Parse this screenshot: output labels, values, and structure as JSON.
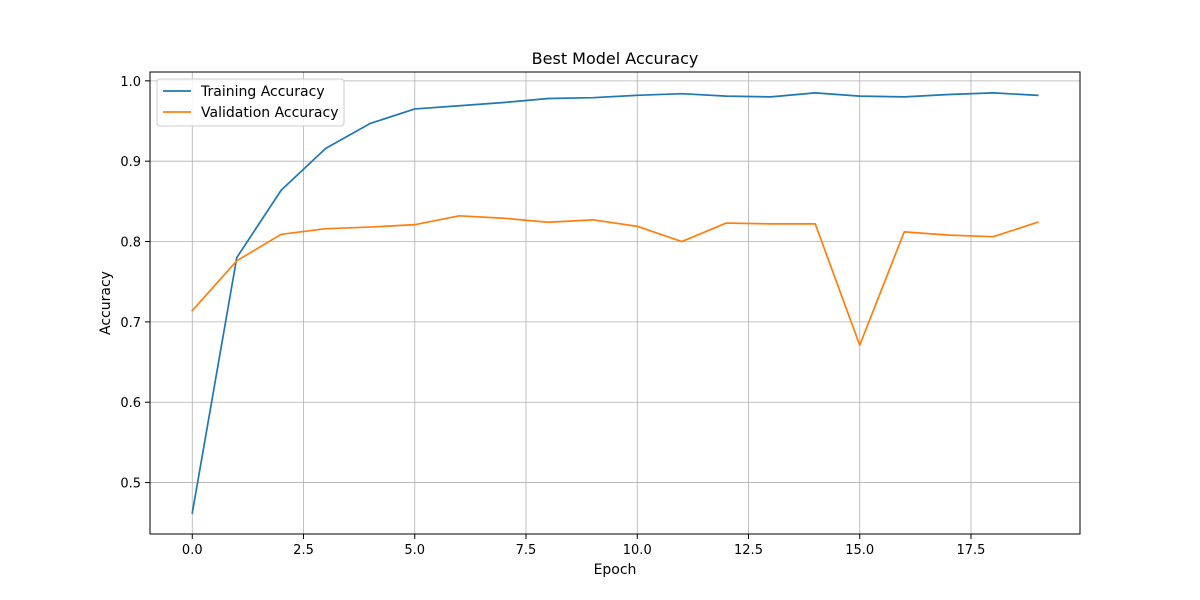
{
  "chart_data": {
    "type": "line",
    "title": "Best Model Accuracy",
    "xlabel": "Epoch",
    "ylabel": "Accuracy",
    "xlim": [
      -0.95,
      19.95
    ],
    "ylim": [
      0.436,
      1.011
    ],
    "xticks": [
      0.0,
      2.5,
      5.0,
      7.5,
      10.0,
      12.5,
      15.0,
      17.5
    ],
    "xtick_labels": [
      "0.0",
      "2.5",
      "5.0",
      "7.5",
      "10.0",
      "12.5",
      "15.0",
      "17.5"
    ],
    "yticks": [
      0.5,
      0.6,
      0.7,
      0.8,
      0.9,
      1.0
    ],
    "ytick_labels": [
      "0.5",
      "0.6",
      "0.7",
      "0.8",
      "0.9",
      "1.0"
    ],
    "grid": true,
    "legend_position": "upper-left",
    "x": [
      0,
      1,
      2,
      3,
      4,
      5,
      6,
      7,
      8,
      9,
      10,
      11,
      12,
      13,
      14,
      15,
      16,
      17,
      18,
      19
    ],
    "series": [
      {
        "name": "Training Accuracy",
        "color": "#1f77b4",
        "values": [
          0.462,
          0.78,
          0.864,
          0.916,
          0.947,
          0.965,
          0.969,
          0.973,
          0.978,
          0.979,
          0.982,
          0.984,
          0.981,
          0.98,
          0.985,
          0.981,
          0.98,
          0.983,
          0.985,
          0.982
        ]
      },
      {
        "name": "Validation Accuracy",
        "color": "#ff7f0e",
        "values": [
          0.714,
          0.776,
          0.809,
          0.816,
          0.818,
          0.821,
          0.832,
          0.829,
          0.824,
          0.827,
          0.819,
          0.8,
          0.823,
          0.822,
          0.822,
          0.671,
          0.812,
          0.808,
          0.806,
          0.824
        ]
      }
    ]
  }
}
